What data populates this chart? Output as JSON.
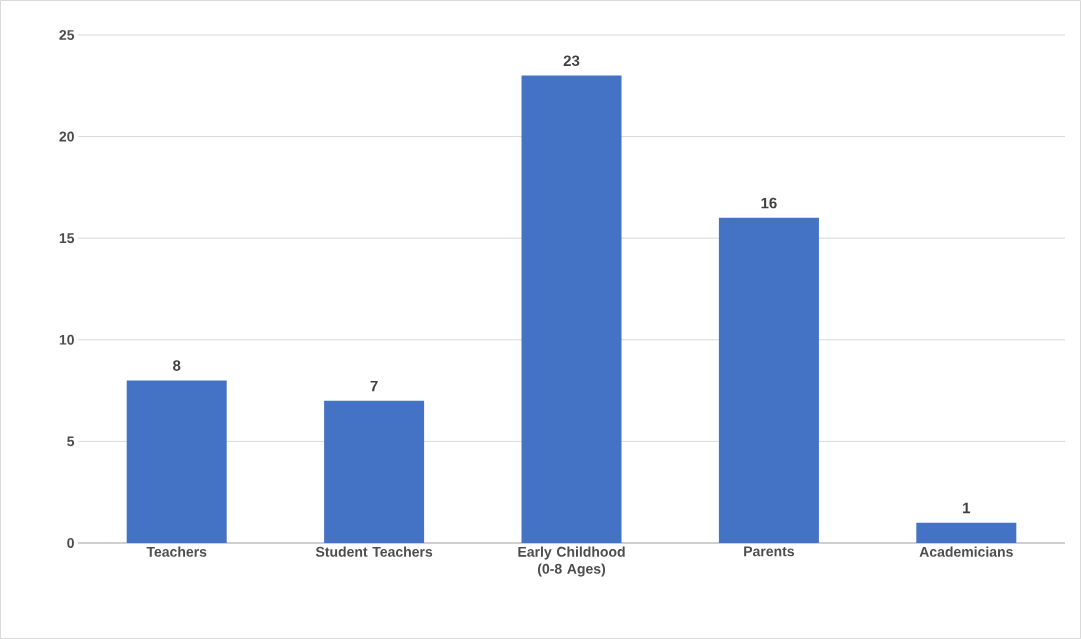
{
  "chart_data": {
    "type": "bar",
    "categories": [
      "Teachers",
      "Student Teachers",
      "Early Childhood (0-8 Ages)",
      "Parents",
      "Academicians"
    ],
    "values": [
      8,
      7,
      23,
      16,
      1
    ],
    "color": "#4472c4",
    "ylim": [
      0,
      25
    ],
    "yticks": [
      0,
      5,
      10,
      15,
      20,
      25
    ],
    "grid": "y",
    "data_labels": true
  }
}
